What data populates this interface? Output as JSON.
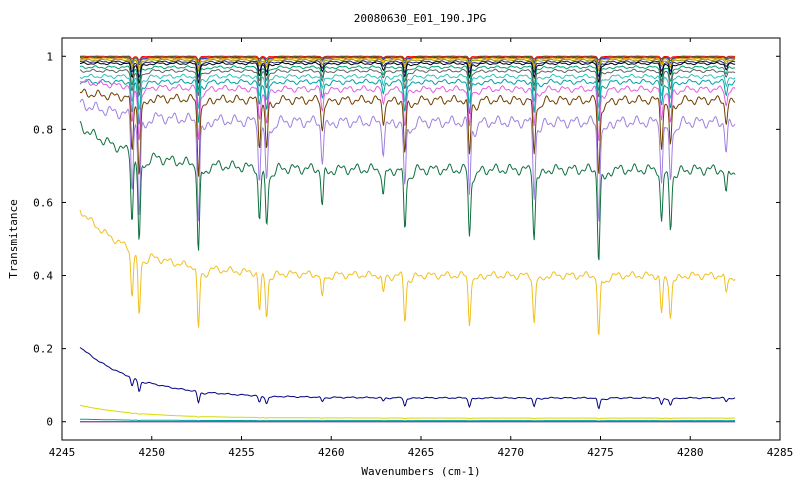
{
  "chart_data": {
    "type": "line",
    "title": "20080630_E01_190.JPG",
    "xlabel": "Wavenumbers (cm-1)",
    "ylabel": "Transmitance",
    "xlim": [
      4245,
      4285
    ],
    "ylim": [
      -0.05,
      1.05
    ],
    "x_ticks": [
      "4245",
      "4250",
      "4255",
      "4260",
      "4265",
      "4270",
      "4275",
      "4280",
      "4285"
    ],
    "y_ticks": [
      "0",
      "0.2",
      "0.4",
      "0.6",
      "0.8",
      "1"
    ],
    "x_range": [
      4246,
      4282.5
    ],
    "grid": false,
    "legend": "none",
    "absorption_lines": [
      {
        "x": 4248.9,
        "w": 0.75
      },
      {
        "x": 4249.3,
        "w": 0.95
      },
      {
        "x": 4252.6,
        "w": 1.0
      },
      {
        "x": 4256.0,
        "w": 0.6
      },
      {
        "x": 4256.4,
        "w": 0.6
      },
      {
        "x": 4259.5,
        "w": 0.4
      },
      {
        "x": 4262.9,
        "w": 0.3
      },
      {
        "x": 4264.1,
        "w": 0.7
      },
      {
        "x": 4267.7,
        "w": 0.75
      },
      {
        "x": 4271.3,
        "w": 0.75
      },
      {
        "x": 4274.9,
        "w": 1.0
      },
      {
        "x": 4278.4,
        "w": 0.6
      },
      {
        "x": 4278.9,
        "w": 0.6
      },
      {
        "x": 4282.0,
        "w": 0.3
      }
    ],
    "series": [
      {
        "color": "#ff0000",
        "baseline": 1.0,
        "depth": 0.01,
        "start_excess": 0.0
      },
      {
        "color": "#1f7f3f",
        "baseline": 0.998,
        "depth": 0.015,
        "start_excess": 0.0
      },
      {
        "color": "#3030c0",
        "baseline": 0.996,
        "depth": 0.02,
        "start_excess": 0.0
      },
      {
        "color": "#e8a000",
        "baseline": 0.994,
        "depth": 0.025,
        "start_excess": 0.0
      },
      {
        "color": "#9a9a00",
        "baseline": 0.99,
        "depth": 0.03,
        "start_excess": 0.0
      },
      {
        "color": "#202080",
        "baseline": 0.985,
        "depth": 0.04,
        "start_excess": 0.0
      },
      {
        "color": "#000000",
        "baseline": 0.98,
        "depth": 0.05,
        "start_excess": 0.0
      },
      {
        "color": "#00a070",
        "baseline": 0.97,
        "depth": 0.06,
        "start_excess": 0.0
      },
      {
        "color": "#606060",
        "baseline": 0.96,
        "depth": 0.07,
        "start_excess": 0.0
      },
      {
        "color": "#30c0c0",
        "baseline": 0.945,
        "depth": 0.09,
        "start_excess": 0.0
      },
      {
        "color": "#00a0a0",
        "baseline": 0.93,
        "depth": 0.11,
        "start_excess": 0.0
      },
      {
        "color": "#e060e0",
        "baseline": 0.91,
        "depth": 0.14,
        "start_excess": 0.02
      },
      {
        "color": "#704000",
        "baseline": 0.88,
        "depth": 0.2,
        "start_excess": 0.02
      },
      {
        "color": "#a080e0",
        "baseline": 0.82,
        "depth": 0.26,
        "start_excess": 0.05
      },
      {
        "color": "#107040",
        "baseline": 0.69,
        "depth": 0.24,
        "start_excess": 0.12
      },
      {
        "color": "#f0c020",
        "baseline": 0.4,
        "depth": 0.17,
        "start_excess": 0.18
      },
      {
        "color": "#000080",
        "baseline": 0.065,
        "depth": 0.03,
        "start_excess": 0.14
      },
      {
        "color": "#d8d800",
        "baseline": 0.01,
        "depth": 0.002,
        "start_excess": 0.035
      },
      {
        "color": "#00a0a0",
        "baseline": 0.003,
        "depth": 0.001,
        "start_excess": 0.004
      },
      {
        "color": "#d04080",
        "baseline": 0.0,
        "depth": 0.0,
        "start_excess": 0.0
      },
      {
        "color": "#6040a0",
        "baseline": 0.0,
        "depth": 0.0,
        "start_excess": 0.0
      }
    ]
  }
}
